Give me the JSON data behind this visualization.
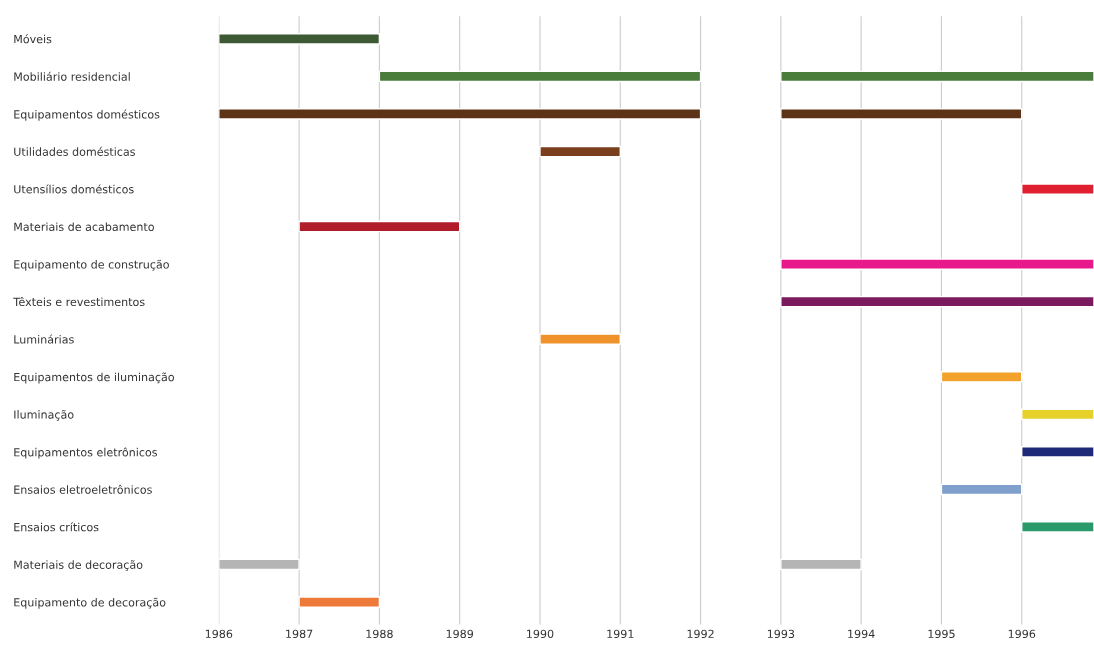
{
  "chart_data": {
    "type": "bar",
    "orientation": "horizontal",
    "grid": "x",
    "categories": [
      "Móveis",
      "Mobiliário residencial",
      "Equipamentos domésticos",
      "Utilidades domésticas",
      "Utensílios domésticos",
      "Materiais de acabamento",
      "Equipamento de construção",
      "Têxteis e revestimentos",
      "Luminárias",
      "Equipamentos de iluminação",
      "Iluminação",
      "Equipamentos eletrônicos",
      "Ensaios eletroeletrônicos",
      "Ensaios críticos",
      "Materiais de decoração",
      "Equipamento de decoração"
    ],
    "xlim": [
      1986,
      1996.9
    ],
    "xticks": [
      1986,
      1987,
      1988,
      1989,
      1990,
      1991,
      1992,
      1993,
      1994,
      1995,
      1996
    ],
    "series": [
      {
        "base": [
          1986,
          1988,
          1986,
          1990,
          1996,
          1987,
          1993,
          1993,
          1990,
          1995,
          1996,
          1996,
          1995,
          1996,
          1986,
          1987
        ],
        "values": [
          2,
          4,
          6,
          1,
          0.9,
          2,
          3.9,
          3.9,
          1,
          1,
          0.9,
          0.9,
          1,
          0.9,
          1,
          1
        ],
        "colors": [
          "#3d5a35",
          "#4a7c3c",
          "#5c3317",
          "#7a3f1d",
          "#e02030",
          "#b01c2a",
          "#e8198b",
          "#7b1a5e",
          "#f0922b",
          "#f2a22a",
          "#e6d02a",
          "#1e2a78",
          "#7fa0cc",
          "#2a9a6a",
          "#b5b5b5",
          "#ee7a3a"
        ]
      },
      {
        "base": [
          null,
          1993,
          1993,
          null,
          null,
          null,
          null,
          null,
          null,
          null,
          null,
          null,
          null,
          null,
          1993,
          null
        ],
        "values": [
          null,
          3.9,
          3,
          null,
          null,
          null,
          null,
          null,
          null,
          null,
          null,
          null,
          null,
          null,
          1,
          null
        ],
        "colors": [
          null,
          "#4a7c3c",
          "#5c3317",
          null,
          null,
          null,
          null,
          null,
          null,
          null,
          null,
          null,
          null,
          null,
          "#b5b5b5",
          null
        ]
      }
    ]
  }
}
